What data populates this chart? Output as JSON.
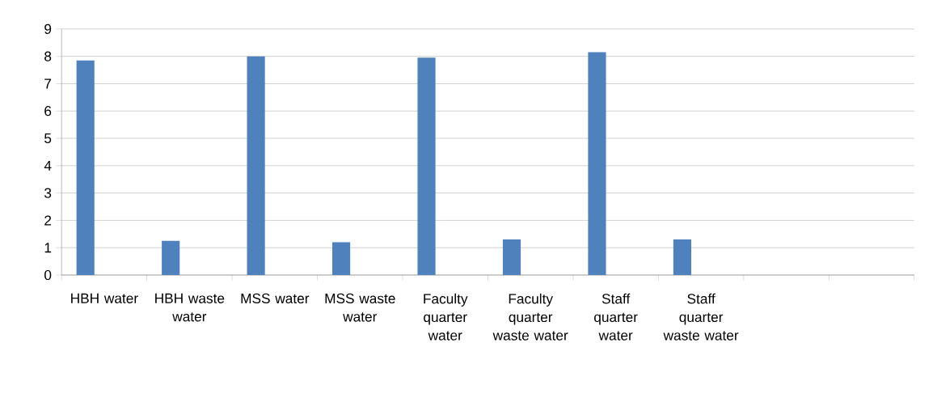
{
  "chart_data": {
    "type": "bar",
    "categories": [
      "HBH water",
      "HBH waste water",
      "MSS water",
      "MSS waste water",
      "Faculty quarter water",
      "Faculty quarter waste water",
      "Staff quarter water",
      "Staff quarter waste water",
      null,
      null
    ],
    "values": [
      7.85,
      1.25,
      8.0,
      1.2,
      7.95,
      1.3,
      8.15,
      1.3,
      null,
      null
    ],
    "color": "#4f81bd",
    "ylim": [
      0,
      9
    ],
    "yticks": [
      0,
      1,
      2,
      3,
      4,
      5,
      6,
      7,
      8,
      9
    ],
    "grid": "y"
  }
}
